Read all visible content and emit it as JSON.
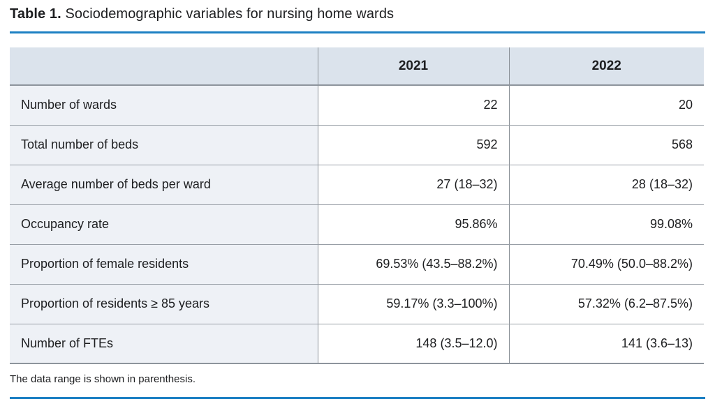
{
  "title": {
    "label": "Table 1.",
    "text": " Sociodemographic variables for nursing home wards"
  },
  "table": {
    "columns": [
      "",
      "2021",
      "2022"
    ],
    "rows": [
      {
        "label": "Number of wards",
        "y2021": "22",
        "y2022": "20"
      },
      {
        "label": "Total number of beds",
        "y2021": "592",
        "y2022": "568"
      },
      {
        "label": "Average number of beds per ward",
        "y2021": "27 (18–32)",
        "y2022": "28 (18–32)"
      },
      {
        "label": "Occupancy rate",
        "y2021": "95.86%",
        "y2022": "99.08%"
      },
      {
        "label": "Proportion of female residents",
        "y2021": "69.53% (43.5–88.2%)",
        "y2022": "70.49% (50.0–88.2%)"
      },
      {
        "label": "Proportion of residents ≥ 85 years",
        "y2021": "59.17% (3.3–100%)",
        "y2022": "57.32% (6.2–87.5%)"
      },
      {
        "label": "Number of FTEs",
        "y2021": "148 (3.5–12.0)",
        "y2022": "141 (3.6–13)"
      }
    ]
  },
  "footnote": "The data range is shown in parenthesis.",
  "colors": {
    "accent_blue": "#1d80c3",
    "header_bg": "#dbe3ec",
    "label_col_bg": "#eef1f6",
    "border_gray": "#8d949c"
  }
}
